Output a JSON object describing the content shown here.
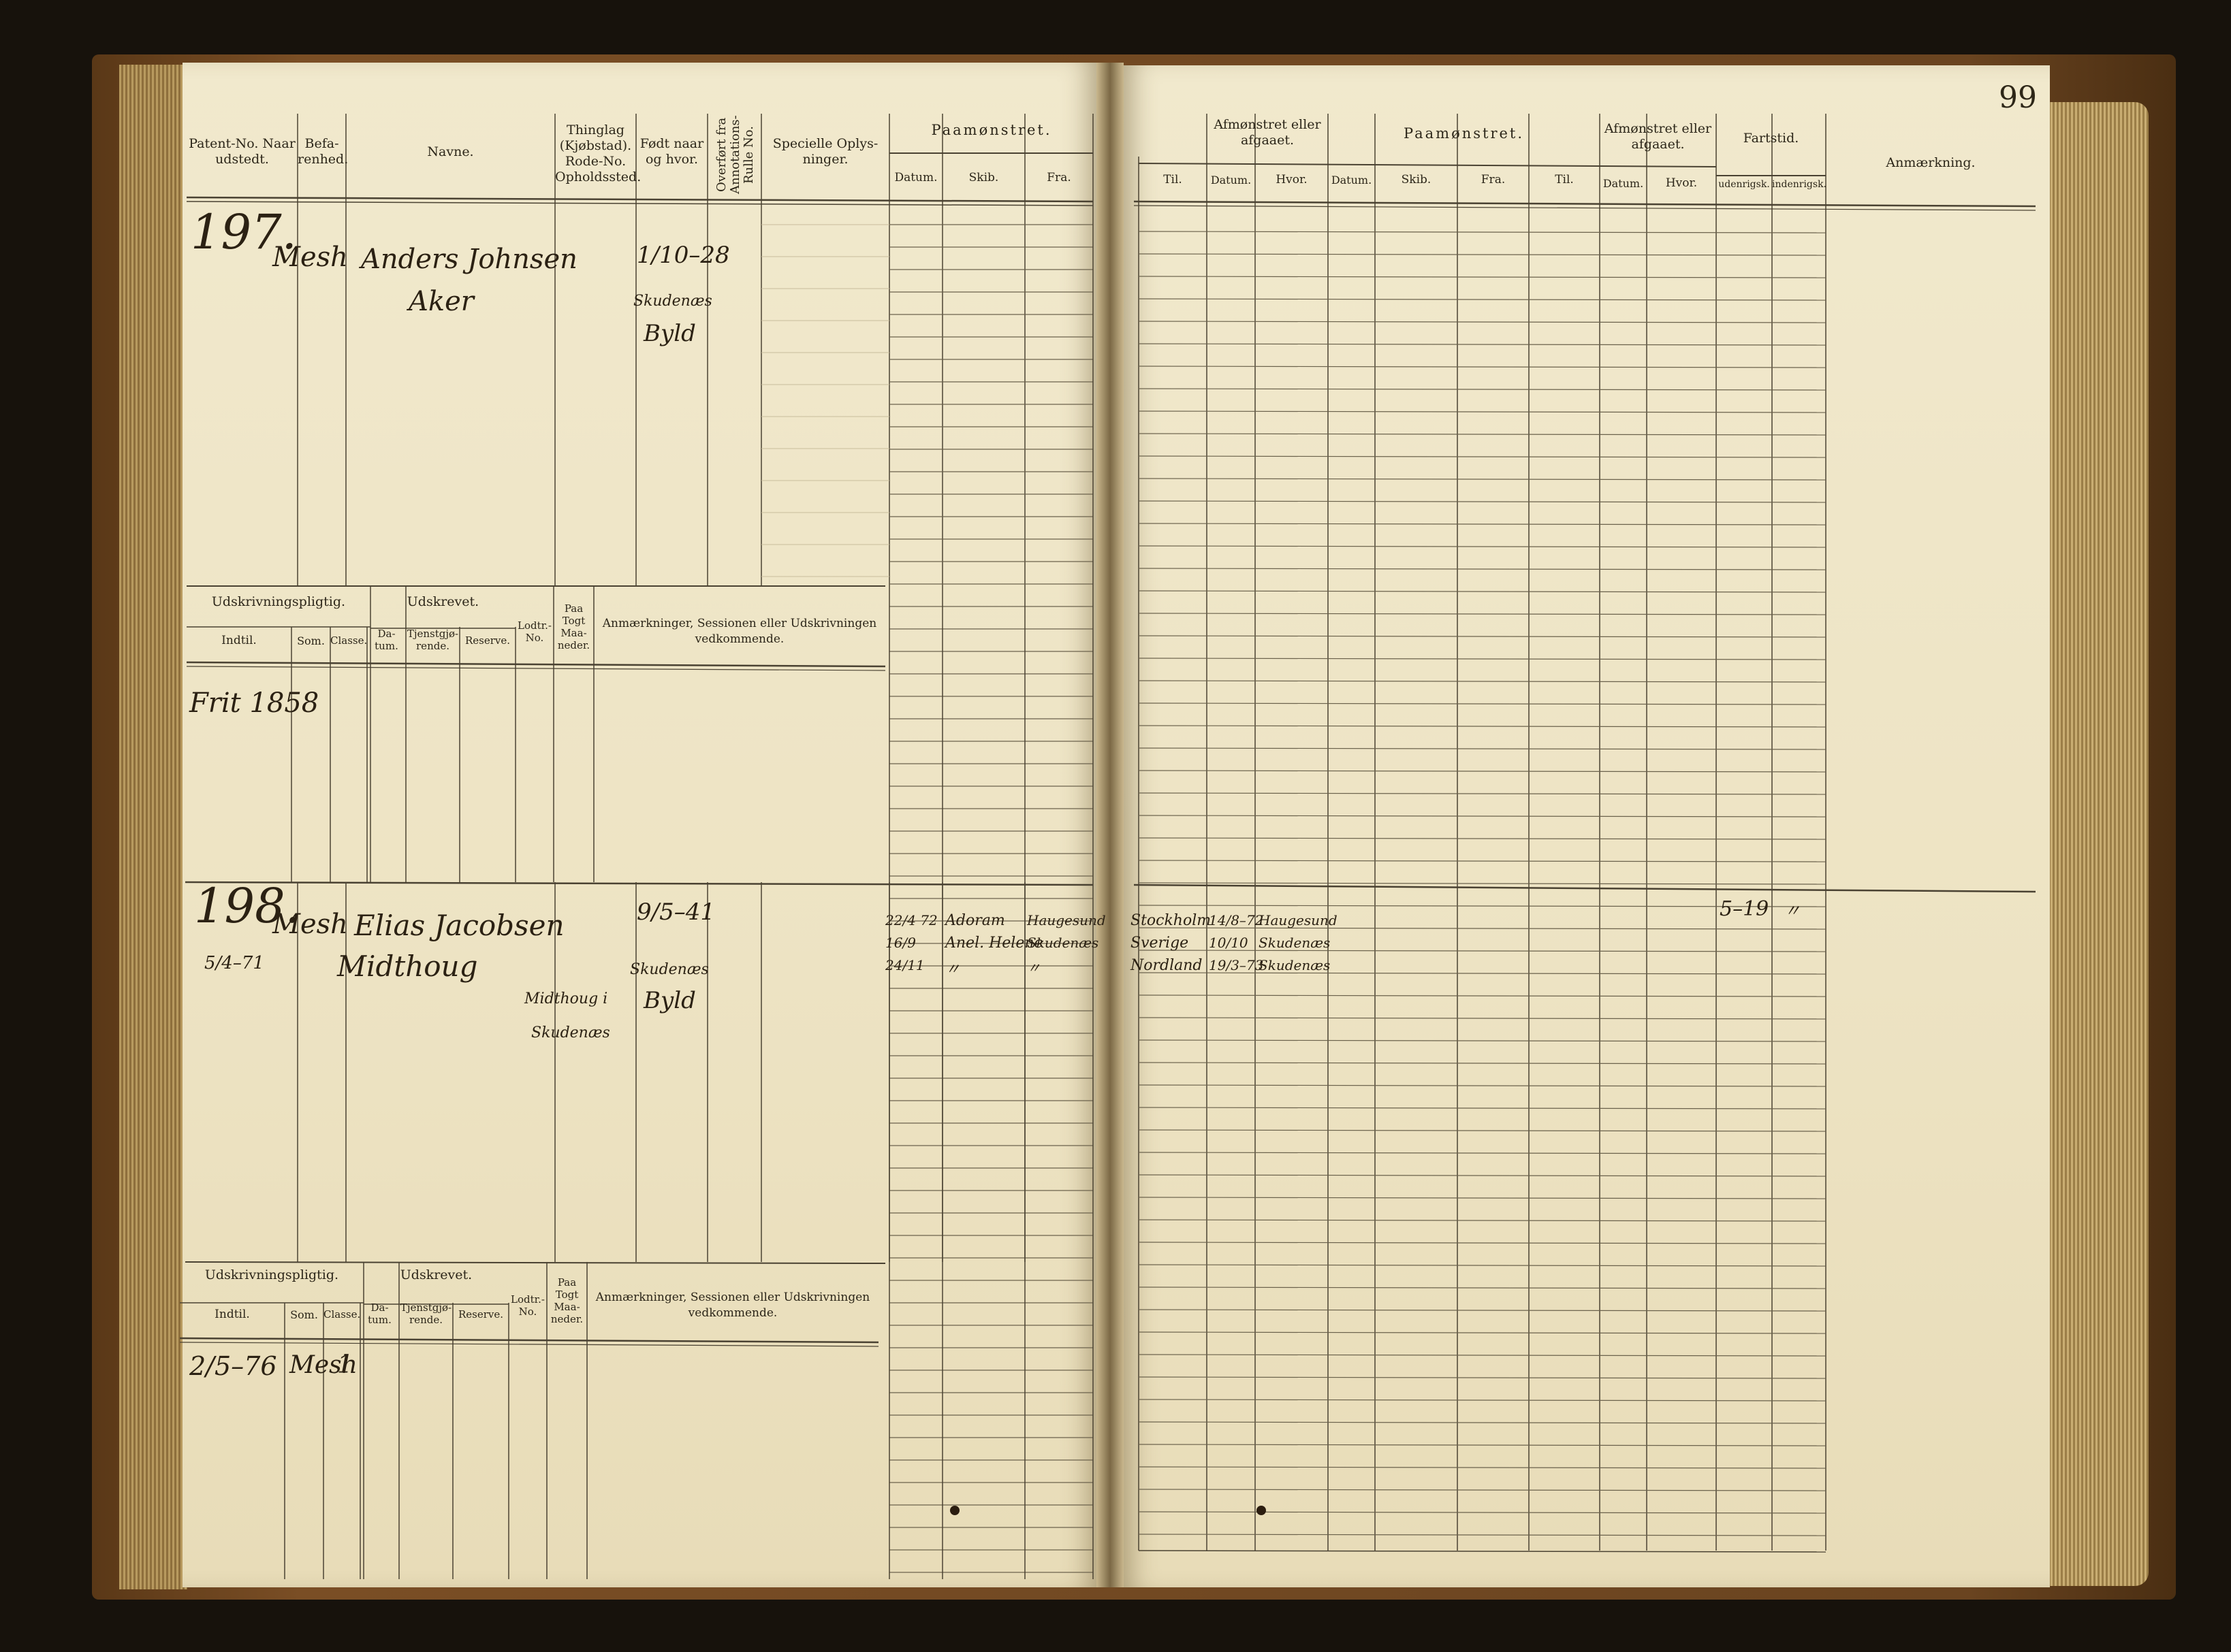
{
  "page_number": "99",
  "left_page": {
    "headers": {
      "patent": "Patent-No. Naar udstedt.",
      "befarenhed": "Befa-renhed.",
      "navne": "Navne.",
      "thinglag": "Thinglag (Kjøbstad). Rode-No. Opholdssted.",
      "fodt": "Født naar og hvor.",
      "overfort": "Overført fra Annotations-Rulle No.",
      "specielle": "Specielle Oplys-ninger.",
      "paamonstret": "Paamønstret.",
      "datum": "Datum.",
      "skib": "Skib.",
      "fra": "Fra."
    },
    "sub_headers": {
      "udskrivningspligtig": "Udskrivningspligtig.",
      "udskrevet": "Udskrevet.",
      "indtil": "Indtil.",
      "som": "Som.",
      "classe": "Classe.",
      "datum": "Da-tum.",
      "tjenstgjorende": "Tjenstgjø-rende.",
      "reserve": "Reserve.",
      "lodtr": "Lodtr.-No.",
      "paa_togt": "Paa Togt Maa-neder.",
      "anmaerkninger": "Anmærkninger, Sessionen eller Udskrivningen vedkommende."
    },
    "entries": [
      {
        "patent_no": "197.",
        "befarenhed": "Mesh",
        "name_line1": "Anders Johnsen",
        "name_line2": "Aker",
        "fodt_date": "1/10–28",
        "fodt_place1": "Skudenæs",
        "fodt_place2": "Byld",
        "indtil": "Frit 1858"
      },
      {
        "patent_no": "198.",
        "patent_date": "5/4–71",
        "befarenhed": "Mesh",
        "name_line1": "Elias Jacobsen",
        "name_line2": "Midthoug",
        "opholdssted1": "Midthoug i",
        "opholdssted2": "Skudenæs",
        "fodt_date": "9/5–41",
        "fodt_place1": "Skudenæs",
        "fodt_place2": "Byld",
        "indtil": "2/5–76",
        "som": "Mesh",
        "classe": "1",
        "paamonstret": [
          {
            "datum": "22/4 72",
            "skib": "Adoram",
            "fra": "Haugesund"
          },
          {
            "datum": "16/9",
            "skib": "Anel. Helene",
            "fra": "Skudenæs"
          },
          {
            "datum": "24/11",
            "skib": "〃",
            "fra": "〃"
          }
        ]
      }
    ]
  },
  "right_page": {
    "headers": {
      "til": "Til.",
      "afmonstret1": "Afmønstret eller afgaaet.",
      "datum": "Datum.",
      "hvor": "Hvor.",
      "paamonstret": "Paamønstret.",
      "skib": "Skib.",
      "fra": "Fra.",
      "afmonstret2": "Afmønstret eller afgaaet.",
      "fartstid": "Fartstid.",
      "udenrigsk": "udenrigsk.",
      "indenrigsk": "indenrigsk.",
      "anmaerkning": "Anmærkning."
    },
    "entry_198": {
      "til": [
        "Stockholm",
        "Sverige",
        "Nordland"
      ],
      "afm_datum": [
        "14/8–72",
        "10/10",
        "19/3–73"
      ],
      "afm_hvor": [
        "Haugesund",
        "Skudenæs",
        "Skudenæs"
      ],
      "fartstid_udenrigsk": "5–19",
      "fartstid_indenrigsk": "〃"
    }
  },
  "colors": {
    "paper": "#efe6c8",
    "ink": "#2b2113",
    "rule": "#4a4232",
    "cover": "#6b4420"
  }
}
